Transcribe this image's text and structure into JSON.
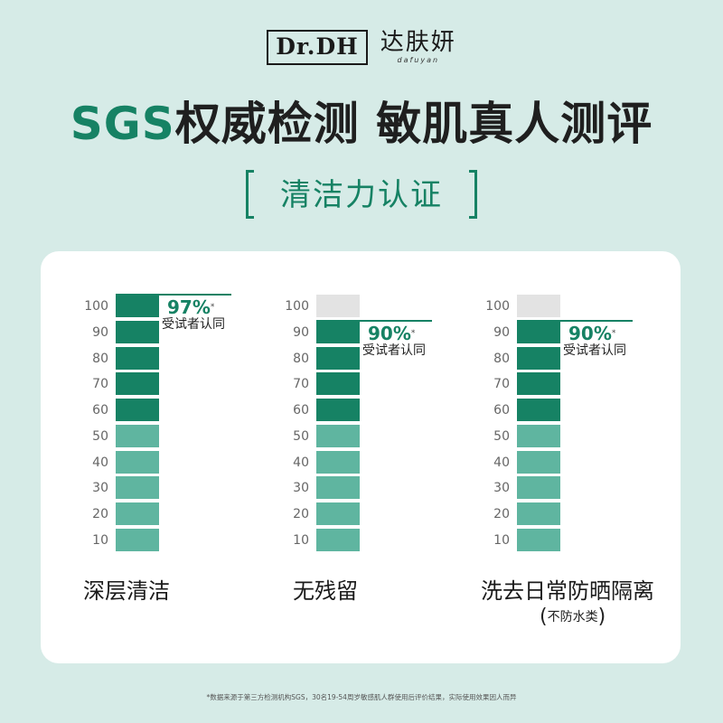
{
  "brand": {
    "logo_en": "Dr.DH",
    "logo_cn": "达肤妍",
    "logo_pinyin": "dafuyan"
  },
  "headline": {
    "highlight": "SGS",
    "rest": "权威检测 敏肌真人测评"
  },
  "subtitle": "清洁力认证",
  "colors": {
    "accent": "#168264",
    "bar_dark": "#168264",
    "bar_light": "#5fb5a0",
    "bar_empty": "#e3e3e3",
    "background": "#d6ebe7",
    "panel": "#ffffff"
  },
  "chart_data": [
    {
      "type": "bar",
      "categories": [
        "深层清洁"
      ],
      "values": [
        97
      ],
      "ylim": [
        0,
        100
      ],
      "tick_labels": [
        "100",
        "90",
        "80",
        "70",
        "60",
        "50",
        "40",
        "30",
        "20",
        "10"
      ],
      "value_label": "97%",
      "value_mark": "*",
      "value_caption": "受试者认同"
    },
    {
      "type": "bar",
      "categories": [
        "无残留"
      ],
      "values": [
        90
      ],
      "ylim": [
        0,
        100
      ],
      "tick_labels": [
        "100",
        "90",
        "80",
        "70",
        "60",
        "50",
        "40",
        "30",
        "20",
        "10"
      ],
      "value_label": "90%",
      "value_mark": "*",
      "value_caption": "受试者认同"
    },
    {
      "type": "bar",
      "categories": [
        "洗去日常防晒隔离"
      ],
      "values": [
        90
      ],
      "ylim": [
        0,
        100
      ],
      "tick_labels": [
        "100",
        "90",
        "80",
        "70",
        "60",
        "50",
        "40",
        "30",
        "20",
        "10"
      ],
      "value_label": "90%",
      "value_mark": "*",
      "value_caption": "受试者认同",
      "note": "不防水类"
    }
  ],
  "footnote": "*数据来源于第三方检测机构SGS，30名19-54周岁敏感肌人群使用后评价结果，实际使用效果因人而异"
}
